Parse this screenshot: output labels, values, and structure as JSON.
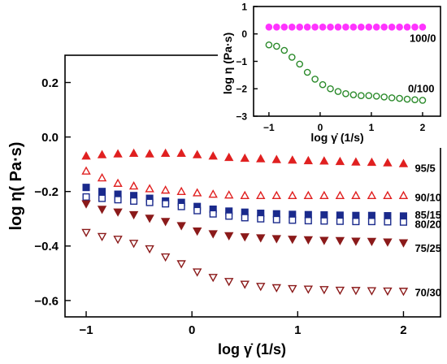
{
  "chart_data": [
    {
      "type": "scatter",
      "xlabel": "log γ̇ (1/s)",
      "ylabel": "log η( Pa·s)",
      "xlim": [
        -1.2,
        2.35
      ],
      "ylim": [
        -0.66,
        0.3
      ],
      "xticks": [
        -1,
        0,
        1,
        2
      ],
      "xtick_labels": [
        "−1",
        "0",
        "1",
        "2"
      ],
      "yticks": [
        0.2,
        0.0,
        -0.2,
        -0.4,
        -0.6
      ],
      "ytick_labels": [
        "0.2",
        "0.0",
        "−0.2",
        "−0.4",
        "−0.6"
      ],
      "x": [
        -1.0,
        -0.85,
        -0.7,
        -0.55,
        -0.4,
        -0.25,
        -0.1,
        0.05,
        0.2,
        0.35,
        0.5,
        0.65,
        0.8,
        0.95,
        1.1,
        1.25,
        1.4,
        1.55,
        1.7,
        1.85,
        2.0
      ],
      "series": [
        {
          "name": "95/5",
          "marker": "triangle",
          "filled": true,
          "color": "#e02020",
          "values": [
            -0.07,
            -0.065,
            -0.062,
            -0.06,
            -0.062,
            -0.06,
            -0.06,
            -0.065,
            -0.07,
            -0.075,
            -0.078,
            -0.08,
            -0.083,
            -0.085,
            -0.087,
            -0.088,
            -0.09,
            -0.092,
            -0.093,
            -0.095,
            -0.098
          ]
        },
        {
          "name": "90/10",
          "marker": "triangle",
          "filled": false,
          "color": "#e02020",
          "values": [
            -0.125,
            -0.15,
            -0.17,
            -0.18,
            -0.19,
            -0.195,
            -0.2,
            -0.205,
            -0.21,
            -0.213,
            -0.215,
            -0.215,
            -0.215,
            -0.215,
            -0.215,
            -0.215,
            -0.215,
            -0.215,
            -0.215,
            -0.215,
            -0.215
          ]
        },
        {
          "name": "85/15",
          "marker": "square",
          "filled": true,
          "color": "#1a2a8c",
          "values": [
            -0.185,
            -0.2,
            -0.21,
            -0.215,
            -0.225,
            -0.235,
            -0.24,
            -0.255,
            -0.265,
            -0.272,
            -0.276,
            -0.28,
            -0.282,
            -0.284,
            -0.285,
            -0.286,
            -0.287,
            -0.288,
            -0.288,
            -0.289,
            -0.29
          ]
        },
        {
          "name": "80/20",
          "marker": "square",
          "filled": false,
          "color": "#1a2a8c",
          "values": [
            -0.22,
            -0.225,
            -0.23,
            -0.235,
            -0.24,
            -0.245,
            -0.255,
            -0.27,
            -0.282,
            -0.29,
            -0.296,
            -0.3,
            -0.303,
            -0.305,
            -0.307,
            -0.308,
            -0.309,
            -0.31,
            -0.31,
            -0.311,
            -0.312
          ]
        },
        {
          "name": "75/25",
          "marker": "triangle-down",
          "filled": true,
          "color": "#8b1a1a",
          "values": [
            -0.245,
            -0.265,
            -0.275,
            -0.285,
            -0.298,
            -0.31,
            -0.325,
            -0.345,
            -0.355,
            -0.362,
            -0.366,
            -0.37,
            -0.373,
            -0.375,
            -0.377,
            -0.379,
            -0.38,
            -0.382,
            -0.383,
            -0.385,
            -0.388
          ]
        },
        {
          "name": "70/30",
          "marker": "triangle-down",
          "filled": false,
          "color": "#8b1a1a",
          "values": [
            -0.35,
            -0.365,
            -0.375,
            -0.39,
            -0.41,
            -0.44,
            -0.465,
            -0.495,
            -0.515,
            -0.53,
            -0.54,
            -0.548,
            -0.553,
            -0.556,
            -0.558,
            -0.56,
            -0.562,
            -0.563,
            -0.564,
            -0.565,
            -0.566
          ]
        }
      ],
      "series_labels_shown": [
        "95/5",
        "90/10",
        "85/15",
        "80/20",
        "75/25",
        "70/30"
      ],
      "grid": false
    },
    {
      "type": "scatter",
      "xlabel": "log γ̇ (1/s)",
      "ylabel": "log η (Pa·s)",
      "xlim": [
        -1.3,
        2.35
      ],
      "ylim": [
        -3.0,
        1.0
      ],
      "xticks": [
        -1,
        0,
        1,
        2
      ],
      "xtick_labels": [
        "−1",
        "0",
        "1",
        "2"
      ],
      "yticks": [
        1,
        0,
        -1,
        -2,
        -3
      ],
      "ytick_labels": [
        "1",
        "0",
        "−1",
        "−2",
        "−3"
      ],
      "x": [
        -1.0,
        -0.85,
        -0.7,
        -0.55,
        -0.4,
        -0.25,
        -0.1,
        0.05,
        0.2,
        0.35,
        0.5,
        0.65,
        0.8,
        0.95,
        1.1,
        1.25,
        1.4,
        1.55,
        1.7,
        1.85,
        2.0
      ],
      "series": [
        {
          "name": "100/0",
          "marker": "circle",
          "filled": true,
          "color": "#ff33ff",
          "values": [
            0.25,
            0.25,
            0.25,
            0.25,
            0.25,
            0.25,
            0.25,
            0.25,
            0.25,
            0.25,
            0.25,
            0.25,
            0.25,
            0.25,
            0.25,
            0.25,
            0.25,
            0.25,
            0.25,
            0.25,
            0.25
          ]
        },
        {
          "name": "0/100",
          "marker": "circle",
          "filled": false,
          "color": "#2a8a2a",
          "values": [
            -0.4,
            -0.45,
            -0.6,
            -0.85,
            -1.1,
            -1.4,
            -1.65,
            -1.85,
            -2.0,
            -2.1,
            -2.18,
            -2.22,
            -2.25,
            -2.25,
            -2.27,
            -2.3,
            -2.33,
            -2.35,
            -2.38,
            -2.4,
            -2.42
          ]
        }
      ],
      "series_labels_shown": [
        "100/0",
        "0/100"
      ],
      "grid": false
    }
  ]
}
